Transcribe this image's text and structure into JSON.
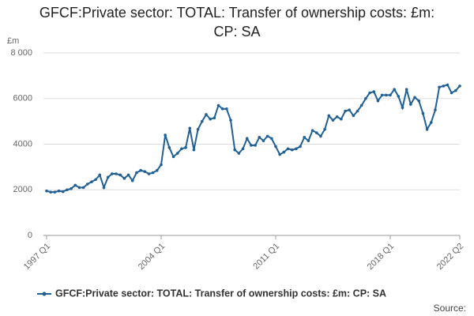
{
  "chart_data": {
    "type": "line",
    "title": "GFCF:Private sector: TOTAL: Transfer of ownership costs: £m: CP: SA",
    "y_unit": "£m",
    "source": "Source:",
    "categories": [
      "1997 Q1",
      null,
      null,
      null,
      null,
      null,
      null,
      null,
      null,
      null,
      null,
      null,
      null,
      null,
      null,
      null,
      null,
      null,
      null,
      null,
      null,
      null,
      null,
      null,
      null,
      null,
      null,
      null,
      "2004 Q1",
      null,
      null,
      null,
      null,
      null,
      null,
      null,
      null,
      null,
      null,
      null,
      null,
      null,
      null,
      null,
      null,
      null,
      null,
      null,
      null,
      null,
      null,
      null,
      null,
      null,
      null,
      null,
      "2011 Q1",
      null,
      null,
      null,
      null,
      null,
      null,
      null,
      null,
      null,
      null,
      null,
      null,
      null,
      null,
      null,
      null,
      null,
      null,
      null,
      null,
      null,
      null,
      null,
      null,
      null,
      null,
      null,
      "2018 Q1",
      null,
      null,
      null,
      null,
      null,
      null,
      null,
      null,
      null,
      null,
      null,
      null,
      null,
      null,
      null,
      null,
      "2022 Q2"
    ],
    "series": [
      {
        "name": "GFCF:Private sector: TOTAL: Transfer of ownership costs: £m: CP: SA",
        "color": "#206095",
        "values": [
          1950,
          1900,
          1900,
          1950,
          1920,
          2000,
          2050,
          2200,
          2100,
          2100,
          2250,
          2350,
          2450,
          2650,
          2100,
          2550,
          2700,
          2700,
          2650,
          2500,
          2650,
          2400,
          2750,
          2850,
          2800,
          2700,
          2750,
          2850,
          3100,
          4400,
          3850,
          3450,
          3600,
          3800,
          3850,
          4700,
          3750,
          4650,
          5000,
          5300,
          5100,
          5150,
          5700,
          5550,
          5550,
          5050,
          3750,
          3600,
          3800,
          4250,
          3950,
          3950,
          4300,
          4150,
          4350,
          4250,
          3900,
          3550,
          3650,
          3800,
          3750,
          3800,
          3900,
          4300,
          4150,
          4600,
          4500,
          4350,
          4650,
          5250,
          5050,
          5200,
          5100,
          5450,
          5500,
          5250,
          5450,
          5700,
          6000,
          6250,
          6300,
          5900,
          6150,
          6150,
          6150,
          6400,
          6100,
          5600,
          6400,
          5750,
          6050,
          5900,
          5350,
          4650,
          4950,
          5500,
          6500,
          6550,
          6600,
          6250,
          6350,
          6550
        ]
      }
    ],
    "ylim": [
      0,
      8000
    ],
    "yticks": [
      0,
      2000,
      4000,
      6000,
      {
        "value": 8000,
        "label": "8 000"
      }
    ],
    "grid": true
  }
}
